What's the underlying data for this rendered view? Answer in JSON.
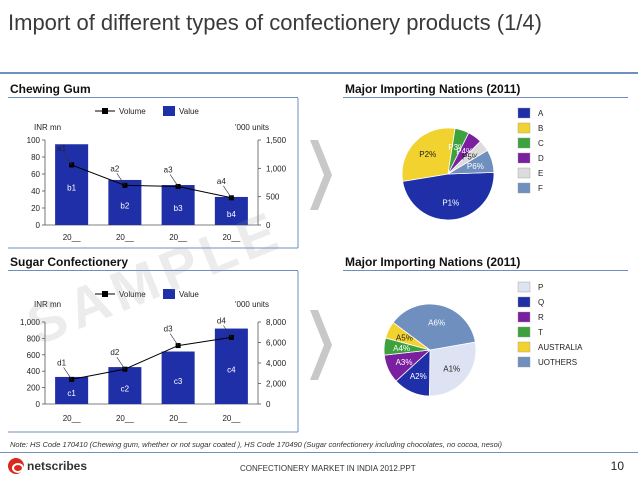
{
  "page": {
    "title": "Import of different types of confectionery products (1/4)",
    "watermark": "SAMPLE",
    "note": "Note: HS Code 170410 (Chewing gum, whether or not sugar coated ), HS Code 170490 (Sugar confectionery including chocolates, no cocoa, nesoi)",
    "footer_center": "CONFECTIONERY MARKET IN INDIA 2012.PPT",
    "page_number": "10",
    "logo_text": "netscribes"
  },
  "colors": {
    "bar": "#1f2fa8",
    "line": "#000000",
    "rule": "#6f8fbf",
    "arrow": "#c8c8c8"
  },
  "chart_data": [
    {
      "id": "chewing-gum",
      "type": "bar",
      "title": "Chewing Gum",
      "left_axis_label": "INR mn",
      "right_axis_label": "'000 units",
      "legend": [
        "Volume",
        "Value"
      ],
      "categories": [
        "20__",
        "20__",
        "20__",
        "20__"
      ],
      "left_ticks": [
        "0",
        "20",
        "40",
        "60",
        "80",
        "100"
      ],
      "right_ticks": [
        "0",
        "500",
        "1,000",
        "1,500"
      ],
      "ylim_left": [
        0,
        100
      ],
      "ylim_right": [
        0,
        1500
      ],
      "series": [
        {
          "name": "Value",
          "values": [
            95,
            53,
            47,
            33
          ],
          "labels": [
            "b1",
            "b2",
            "b3",
            "b4"
          ]
        },
        {
          "name": "Volume",
          "values": [
            1060,
            700,
            680,
            480
          ],
          "labels": [
            "a1",
            "a2",
            "a3",
            "a4"
          ]
        }
      ]
    },
    {
      "id": "sugar-confectionery",
      "type": "bar",
      "title": "Sugar Confectionery",
      "left_axis_label": "INR mn",
      "right_axis_label": "'000 units",
      "legend": [
        "Volume",
        "Value"
      ],
      "categories": [
        "20__",
        "20__",
        "20__",
        "20__"
      ],
      "left_ticks": [
        "0",
        "200",
        "400",
        "600",
        "800",
        "1,000"
      ],
      "right_ticks": [
        "0",
        "2,000",
        "4,000",
        "6,000",
        "8,000"
      ],
      "ylim_left": [
        0,
        1000
      ],
      "ylim_right": [
        0,
        8000
      ],
      "series": [
        {
          "name": "Value",
          "values": [
            330,
            450,
            640,
            920
          ],
          "labels": [
            "c1",
            "c2",
            "c3",
            "c4"
          ]
        },
        {
          "name": "Volume",
          "values": [
            2400,
            3400,
            5700,
            6500
          ],
          "labels": [
            "d1",
            "d2",
            "d3",
            "d4"
          ]
        }
      ]
    },
    {
      "id": "pie-chewing-gum",
      "type": "pie",
      "title": "Major Importing Nations (2011)",
      "slices": [
        {
          "label": "P1%",
          "value": 48,
          "color": "#1f2fa8"
        },
        {
          "label": "P2%",
          "value": 30,
          "color": "#f2d22e"
        },
        {
          "label": "P3%",
          "value": 5,
          "color": "#3da23d"
        },
        {
          "label": "P4%",
          "value": 5,
          "color": "#7a1fa0"
        },
        {
          "label": "P5%",
          "value": 4,
          "color": "#dcdcdc"
        },
        {
          "label": "P6%",
          "value": 8,
          "color": "#6f8fbf"
        }
      ],
      "legend": [
        {
          "label": "A",
          "color": "#1f2fa8"
        },
        {
          "label": "B",
          "color": "#f2d22e"
        },
        {
          "label": "C",
          "color": "#3da23d"
        },
        {
          "label": "D",
          "color": "#7a1fa0"
        },
        {
          "label": "E",
          "color": "#dcdcdc"
        },
        {
          "label": "F",
          "color": "#6f8fbf"
        }
      ]
    },
    {
      "id": "pie-sugar",
      "type": "pie",
      "title": "Major Importing Nations (2011)",
      "slices": [
        {
          "label": "A1%",
          "value": 28,
          "color": "#dde3f2"
        },
        {
          "label": "A2%",
          "value": 13,
          "color": "#1f2fa8"
        },
        {
          "label": "A3%",
          "value": 10,
          "color": "#7a1fa0"
        },
        {
          "label": "A4%",
          "value": 6,
          "color": "#3da23d"
        },
        {
          "label": "A5%",
          "value": 6,
          "color": "#f2d22e"
        },
        {
          "label": "A6%",
          "value": 37,
          "color": "#6f8fbf"
        }
      ],
      "legend": [
        {
          "label": "P",
          "color": "#dde3f2"
        },
        {
          "label": "Q",
          "color": "#1f2fa8"
        },
        {
          "label": "R",
          "color": "#7a1fa0"
        },
        {
          "label": "T",
          "color": "#3da23d"
        },
        {
          "label": "AUSTRALIA",
          "color": "#f2d22e"
        },
        {
          "label": "UOTHERS",
          "color": "#6f8fbf"
        }
      ]
    }
  ]
}
